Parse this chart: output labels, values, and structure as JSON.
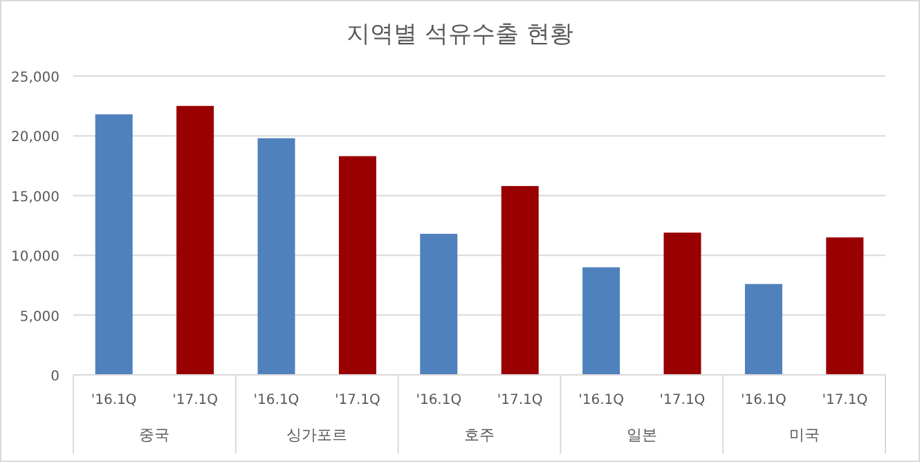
{
  "chart_data": {
    "type": "bar",
    "title": "지역별 석유수출 현황",
    "categories": [
      "중국",
      "싱가포르",
      "호주",
      "일본",
      "미국"
    ],
    "series": [
      {
        "name": "'16.1Q",
        "color": "#4f81bd",
        "values": [
          21800,
          19800,
          11800,
          9000,
          7600
        ]
      },
      {
        "name": "'17.1Q",
        "color": "#990000",
        "values": [
          22500,
          18300,
          15800,
          11900,
          11500
        ]
      }
    ],
    "ylim": [
      0,
      25000
    ],
    "yticks": [
      {
        "value": 0,
        "label": "0"
      },
      {
        "value": 5000,
        "label": "5,000"
      },
      {
        "value": 10000,
        "label": "10,000"
      },
      {
        "value": 15000,
        "label": "15,000"
      },
      {
        "value": 20000,
        "label": "20,000"
      },
      {
        "value": 25000,
        "label": "25,000"
      }
    ],
    "grid": true
  }
}
